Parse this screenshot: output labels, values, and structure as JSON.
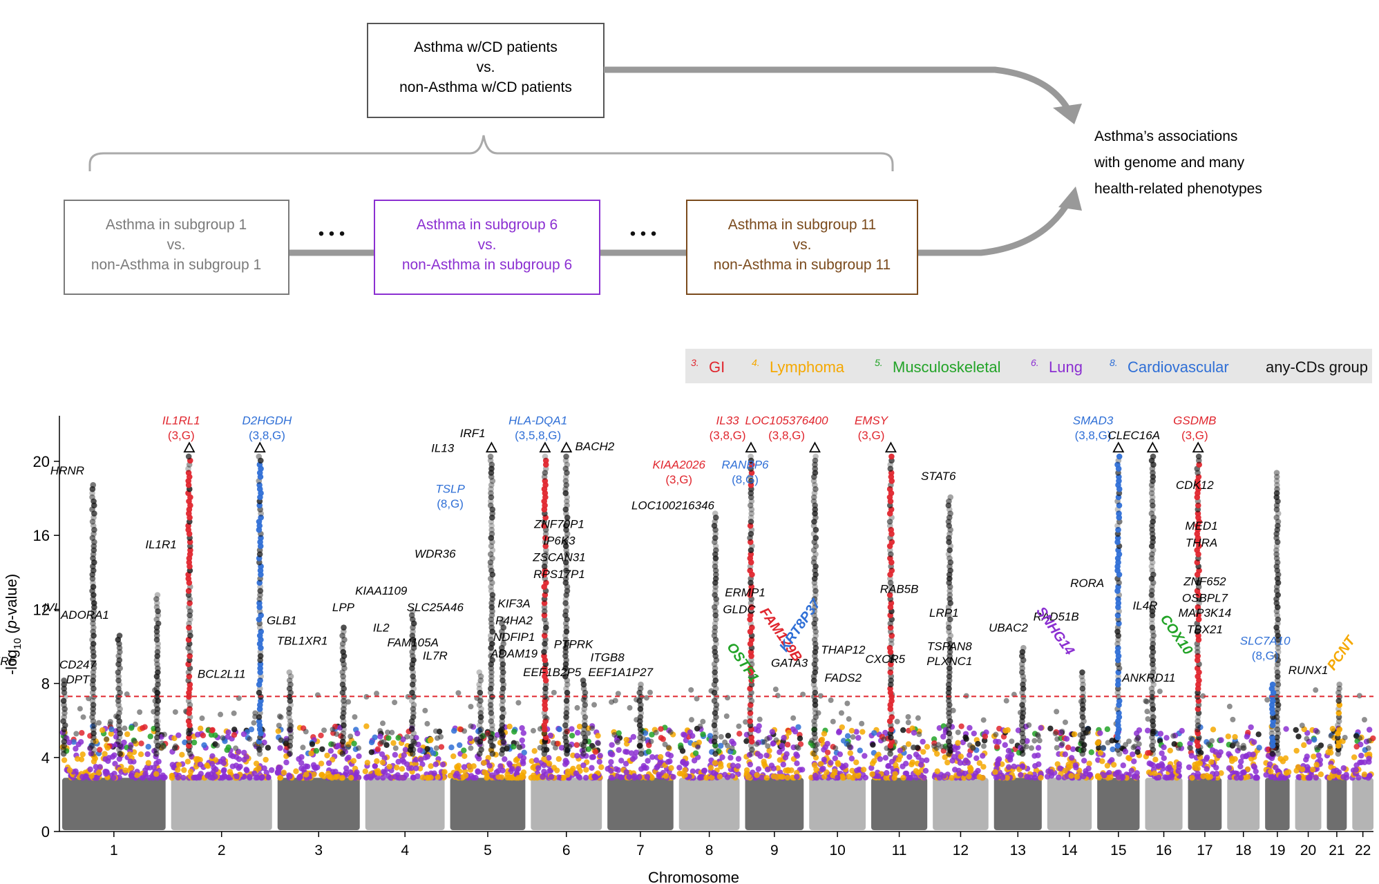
{
  "flow": {
    "top_box": [
      "Asthma w/CD patients",
      "vs.",
      "non-Asthma w/CD patients"
    ],
    "sub_boxes": [
      {
        "lines": [
          "Asthma in subgroup 1",
          "vs.",
          "non-Asthma in subgroup 1"
        ],
        "color": "#7a7a7a"
      },
      {
        "lines": [
          "Asthma in subgroup 6",
          "vs.",
          "non-Asthma in subgroup 6"
        ],
        "color": "#8b2fd1"
      },
      {
        "lines": [
          "Asthma in subgroup 11",
          "vs.",
          "non-Asthma in subgroup 11"
        ],
        "color": "#7a4a1c"
      }
    ],
    "ellipsis": "• • •",
    "result": [
      "Asthma’s associations",
      "with genome and many",
      "health-related phenotypes"
    ]
  },
  "legend": [
    {
      "num": "3.",
      "label": "GI",
      "color": "#e0262e"
    },
    {
      "num": "4.",
      "label": "Lymphoma",
      "color": "#f5a800"
    },
    {
      "num": "5.",
      "label": "Musculoskeletal",
      "color": "#22a327"
    },
    {
      "num": "6.",
      "label": "Lung",
      "color": "#8b2fd1"
    },
    {
      "num": "8.",
      "label": "Cardiovascular",
      "color": "#2f6fd6"
    },
    {
      "num": "",
      "label": "any-CDs group",
      "color": "#111111"
    }
  ],
  "colors": {
    "GI": "#e0262e",
    "Lymphoma": "#f5a800",
    "Musculoskeletal": "#22a327",
    "Lung": "#8b2fd1",
    "Cardiovascular": "#2f6fd6",
    "anyCD": "#111111",
    "chrDark": "#6e6e6e",
    "chrLight": "#b4b4b4",
    "threshold": "#e0262e",
    "legendBg": "#e6e6e6",
    "arrow": "#999999"
  },
  "chart_data": {
    "type": "scatter",
    "xlabel": "Chromosome",
    "ylabel": "-log10(p-value)",
    "ylim": [
      0,
      22
    ],
    "yticks": [
      0,
      4,
      8,
      12,
      16,
      20
    ],
    "threshold": 7.3,
    "chromosomes": [
      "1",
      "2",
      "3",
      "4",
      "5",
      "6",
      "7",
      "8",
      "9",
      "10",
      "11",
      "12",
      "13",
      "14",
      "15",
      "16",
      "17",
      "18",
      "19",
      "20",
      "21",
      "22"
    ],
    "chromosome_x_labels": [
      "1",
      "2",
      "3",
      "4",
      "5",
      "6",
      "7",
      "8",
      "9",
      "10",
      "11",
      "12",
      "13",
      "14",
      "15",
      "16",
      "17",
      "18",
      "19",
      "20",
      "21",
      "22"
    ],
    "peaks": [
      {
        "chr": 1,
        "pos": 0.02,
        "y": 8.2,
        "group": "anyCD"
      },
      {
        "chr": 1,
        "pos": 0.3,
        "y": 18.8,
        "group": "anyCD"
      },
      {
        "chr": 1,
        "pos": 0.55,
        "y": 10.8,
        "group": "anyCD"
      },
      {
        "chr": 1,
        "pos": 0.92,
        "y": 12.8,
        "group": "anyCD"
      },
      {
        "chr": 2,
        "pos": 0.18,
        "y": 20.7,
        "group": "GI",
        "capped": true
      },
      {
        "chr": 2,
        "pos": 0.88,
        "y": 20.7,
        "group": "Cardiovascular",
        "capped": true
      },
      {
        "chr": 3,
        "pos": 0.15,
        "y": 8.6,
        "group": "anyCD"
      },
      {
        "chr": 3,
        "pos": 0.8,
        "y": 11.2,
        "group": "anyCD"
      },
      {
        "chr": 4,
        "pos": 0.6,
        "y": 12.1,
        "group": "anyCD"
      },
      {
        "chr": 5,
        "pos": 0.4,
        "y": 8.8,
        "group": "anyCD"
      },
      {
        "chr": 5,
        "pos": 0.55,
        "y": 20.7,
        "group": "anyCD",
        "capped": true
      },
      {
        "chr": 5,
        "pos": 0.7,
        "y": 11.5,
        "group": "anyCD"
      },
      {
        "chr": 6,
        "pos": 0.2,
        "y": 20.7,
        "group": "GI",
        "capped": true
      },
      {
        "chr": 6,
        "pos": 0.5,
        "y": 20.7,
        "group": "anyCD",
        "capped": true
      },
      {
        "chr": 6,
        "pos": 0.75,
        "y": 8.2,
        "group": "anyCD"
      },
      {
        "chr": 7,
        "pos": 0.5,
        "y": 8.0,
        "group": "anyCD"
      },
      {
        "chr": 8,
        "pos": 0.6,
        "y": 17.3,
        "group": "anyCD"
      },
      {
        "chr": 9,
        "pos": 0.1,
        "y": 20.7,
        "group": "GI",
        "capped": true
      },
      {
        "chr": 10,
        "pos": 0.1,
        "y": 20.7,
        "group": "anyCD",
        "capped": true
      },
      {
        "chr": 11,
        "pos": 0.35,
        "y": 20.7,
        "group": "GI",
        "capped": true
      },
      {
        "chr": 12,
        "pos": 0.3,
        "y": 18.2,
        "group": "anyCD"
      },
      {
        "chr": 13,
        "pos": 0.6,
        "y": 10.1,
        "group": "anyCD"
      },
      {
        "chr": 14,
        "pos": 0.8,
        "y": 8.6,
        "group": "anyCD"
      },
      {
        "chr": 15,
        "pos": 0.5,
        "y": 20.7,
        "group": "Cardiovascular",
        "capped": true
      },
      {
        "chr": 16,
        "pos": 0.2,
        "y": 20.7,
        "group": "anyCD",
        "capped": true
      },
      {
        "chr": 17,
        "pos": 0.3,
        "y": 20.7,
        "group": "GI",
        "capped": true
      },
      {
        "chr": 19,
        "pos": 0.5,
        "y": 19.5,
        "group": "anyCD"
      },
      {
        "chr": 19,
        "pos": 0.3,
        "y": 8.0,
        "group": "Cardiovascular"
      },
      {
        "chr": 21,
        "pos": 0.6,
        "y": 8.1,
        "group": "Lymphoma"
      }
    ]
  },
  "labels": [
    {
      "text": "RERE",
      "chr": 1,
      "pos": -0.6,
      "y": 9.0
    },
    {
      "text": "HRNR",
      "chr": 1,
      "pos": 0.05,
      "y": 19.3
    },
    {
      "text": "IVL",
      "chr": 1,
      "pos": -0.1,
      "y": 11.9
    },
    {
      "text": "ADORA1",
      "chr": 1,
      "pos": 0.22,
      "y": 11.5
    },
    {
      "text": "CD247",
      "chr": 1,
      "pos": 0.15,
      "y": 8.8
    },
    {
      "text": "DPT",
      "chr": 1,
      "pos": 0.15,
      "y": 8.0
    },
    {
      "text": "IL1RL1",
      "chr": 2,
      "pos": 0.1,
      "y": 22.0,
      "color": "#e0262e"
    },
    {
      "text": "(3,G)",
      "chr": 2,
      "pos": 0.1,
      "y": 21.2,
      "color": "#e0262e",
      "plain": true
    },
    {
      "text": "D2HGDH",
      "chr": 2,
      "pos": 0.95,
      "y": 22.0,
      "color": "#2f6fd6"
    },
    {
      "text": "(3,8,G)",
      "chr": 2,
      "pos": 0.95,
      "y": 21.2,
      "color": "#2f6fd6",
      "plain": true
    },
    {
      "text": "IL1R1",
      "chr": 2,
      "pos": -0.1,
      "y": 15.3
    },
    {
      "text": "BCL2L11",
      "chr": 2,
      "pos": 0.5,
      "y": 8.3
    },
    {
      "text": "GLB1",
      "chr": 3,
      "pos": 0.05,
      "y": 11.2
    },
    {
      "text": "TBL1XR1",
      "chr": 3,
      "pos": 0.3,
      "y": 10.1
    },
    {
      "text": "LPP",
      "chr": 3,
      "pos": 0.8,
      "y": 11.9
    },
    {
      "text": "KIAA1109",
      "chr": 4,
      "pos": 0.2,
      "y": 12.8
    },
    {
      "text": "IL2",
      "chr": 4,
      "pos": 0.2,
      "y": 10.8
    },
    {
      "text": "FAM105A",
      "chr": 4,
      "pos": 0.6,
      "y": 10.0
    },
    {
      "text": "IL13",
      "chr": 5,
      "pos": -0.1,
      "y": 20.5
    },
    {
      "text": "IRF1",
      "chr": 5,
      "pos": 0.3,
      "y": 21.3
    },
    {
      "text": "TSLP",
      "chr": 5,
      "pos": 0.0,
      "y": 18.3,
      "color": "#2f6fd6"
    },
    {
      "text": "(8,G)",
      "chr": 5,
      "pos": 0.0,
      "y": 17.5,
      "color": "#2f6fd6",
      "plain": true
    },
    {
      "text": "WDR36",
      "chr": 5,
      "pos": -0.2,
      "y": 14.8
    },
    {
      "text": "SLC25A46",
      "chr": 5,
      "pos": -0.2,
      "y": 11.9
    },
    {
      "text": "IL7R",
      "chr": 5,
      "pos": -0.2,
      "y": 9.3
    },
    {
      "text": "KIF3A",
      "chr": 5,
      "pos": 0.85,
      "y": 12.1
    },
    {
      "text": "P4HA2",
      "chr": 5,
      "pos": 0.85,
      "y": 11.2
    },
    {
      "text": "NDFIP1",
      "chr": 5,
      "pos": 0.85,
      "y": 10.3
    },
    {
      "text": "ADAM19",
      "chr": 5,
      "pos": 0.85,
      "y": 9.4
    },
    {
      "text": "HLA-DQA1",
      "chr": 6,
      "pos": 0.1,
      "y": 22.0,
      "color": "#2f6fd6"
    },
    {
      "text": "(3,5,8,G)",
      "chr": 6,
      "pos": 0.1,
      "y": 21.2,
      "color": "#2f6fd6",
      "plain": true
    },
    {
      "text": "BACH2",
      "chr": 6,
      "pos": 0.9,
      "y": 20.6
    },
    {
      "text": "ZNF70P1",
      "chr": 6,
      "pos": 0.4,
      "y": 16.4
    },
    {
      "text": "IP6K3",
      "chr": 6,
      "pos": 0.4,
      "y": 15.5
    },
    {
      "text": "ZSCAN31",
      "chr": 6,
      "pos": 0.4,
      "y": 14.6
    },
    {
      "text": "RPS17P1",
      "chr": 6,
      "pos": 0.4,
      "y": 13.7
    },
    {
      "text": "PTPRK",
      "chr": 6,
      "pos": 0.6,
      "y": 9.9
    },
    {
      "text": "EEF1B2P5",
      "chr": 6,
      "pos": 0.3,
      "y": 8.4
    },
    {
      "text": "ITGB8",
      "chr": 7,
      "pos": 0.0,
      "y": 9.2
    },
    {
      "text": "EEF1A1P27",
      "chr": 7,
      "pos": 0.2,
      "y": 8.4
    },
    {
      "text": "LOC100216346",
      "chr": 8,
      "pos": -0.1,
      "y": 17.4
    },
    {
      "text": "KIAA2026",
      "chr": 8,
      "pos": 0.0,
      "y": 19.6,
      "color": "#e0262e"
    },
    {
      "text": "(3,G)",
      "chr": 8,
      "pos": 0.0,
      "y": 18.8,
      "color": "#e0262e",
      "plain": true
    },
    {
      "text": "IL33",
      "chr": 9,
      "pos": -0.3,
      "y": 22.0,
      "color": "#e0262e"
    },
    {
      "text": "(3,8,G)",
      "chr": 9,
      "pos": -0.3,
      "y": 21.2,
      "color": "#e0262e",
      "plain": true
    },
    {
      "text": "RANBP6",
      "chr": 9,
      "pos": 0.0,
      "y": 19.6,
      "color": "#2f6fd6"
    },
    {
      "text": "(8,G)",
      "chr": 9,
      "pos": 0.0,
      "y": 18.8,
      "color": "#2f6fd6",
      "plain": true
    },
    {
      "text": "ERMP1",
      "chr": 9,
      "pos": 0.0,
      "y": 12.7
    },
    {
      "text": "GLDC",
      "chr": 9,
      "pos": -0.1,
      "y": 11.8
    },
    {
      "text": "LOC105376400",
      "chr": 10,
      "pos": -0.4,
      "y": 22.0,
      "color": "#e0262e"
    },
    {
      "text": "(3,8,G)",
      "chr": 10,
      "pos": -0.4,
      "y": 21.2,
      "color": "#e0262e",
      "plain": true
    },
    {
      "text": "GATA3",
      "chr": 10,
      "pos": -0.35,
      "y": 8.9
    },
    {
      "text": "THAP12",
      "chr": 10,
      "pos": 0.6,
      "y": 9.6
    },
    {
      "text": "FADS2",
      "chr": 10,
      "pos": 0.6,
      "y": 8.1
    },
    {
      "text": "EMSY",
      "chr": 11,
      "pos": 0.0,
      "y": 22.0,
      "color": "#e0262e"
    },
    {
      "text": "(3,G)",
      "chr": 11,
      "pos": 0.0,
      "y": 21.2,
      "color": "#e0262e",
      "plain": true
    },
    {
      "text": "CXCR5",
      "chr": 11,
      "pos": 0.25,
      "y": 9.1
    },
    {
      "text": "RAB5B",
      "chr": 11,
      "pos": 0.5,
      "y": 12.9
    },
    {
      "text": "STAT6",
      "chr": 12,
      "pos": 0.1,
      "y": 19.0
    },
    {
      "text": "LRP1",
      "chr": 12,
      "pos": 0.2,
      "y": 11.6
    },
    {
      "text": "TSPAN8",
      "chr": 12,
      "pos": 0.3,
      "y": 9.8
    },
    {
      "text": "PLXNC1",
      "chr": 12,
      "pos": 0.3,
      "y": 9.0
    },
    {
      "text": "UBAC2",
      "chr": 13,
      "pos": 0.3,
      "y": 10.8
    },
    {
      "text": "RAD51B",
      "chr": 14,
      "pos": 0.2,
      "y": 11.4
    },
    {
      "text": "RORA",
      "chr": 14,
      "pos": 0.9,
      "y": 13.2
    },
    {
      "text": "SMAD3",
      "chr": 15,
      "pos": -0.1,
      "y": 22.0,
      "color": "#2f6fd6"
    },
    {
      "text": "(3,8,G)",
      "chr": 15,
      "pos": -0.1,
      "y": 21.2,
      "color": "#2f6fd6",
      "plain": true
    },
    {
      "text": "CLEC16A",
      "chr": 16,
      "pos": -0.3,
      "y": 21.2
    },
    {
      "text": "IL4R",
      "chr": 16,
      "pos": 0.0,
      "y": 12.0
    },
    {
      "text": "ANKRD11",
      "chr": 16,
      "pos": 0.1,
      "y": 8.1
    },
    {
      "text": "GSDMB",
      "chr": 17,
      "pos": 0.2,
      "y": 22.0,
      "color": "#e0262e"
    },
    {
      "text": "(3,G)",
      "chr": 17,
      "pos": 0.2,
      "y": 21.2,
      "color": "#e0262e",
      "plain": true
    },
    {
      "text": "CDK12",
      "chr": 17,
      "pos": 0.2,
      "y": 18.5
    },
    {
      "text": "MED1",
      "chr": 17,
      "pos": 0.4,
      "y": 16.3
    },
    {
      "text": "THRA",
      "chr": 17,
      "pos": 0.4,
      "y": 15.4
    },
    {
      "text": "ZNF652",
      "chr": 17,
      "pos": 0.5,
      "y": 13.3
    },
    {
      "text": "OSBPL7",
      "chr": 17,
      "pos": 0.5,
      "y": 12.4
    },
    {
      "text": "MAP3K14",
      "chr": 17,
      "pos": 0.5,
      "y": 11.6
    },
    {
      "text": "TBX21",
      "chr": 17,
      "pos": 0.5,
      "y": 10.7
    },
    {
      "text": "SLC7A10",
      "chr": 19,
      "pos": 0.0,
      "y": 10.1,
      "color": "#2f6fd6"
    },
    {
      "text": "(8,G)",
      "chr": 19,
      "pos": 0.0,
      "y": 9.3,
      "color": "#2f6fd6",
      "plain": true
    },
    {
      "text": "RUNX1",
      "chr": 20,
      "pos": 0.5,
      "y": 8.5
    }
  ],
  "rotated_labels": [
    {
      "text": "OSTF1",
      "chr": 9,
      "pos": -0.1,
      "y": 9.0,
      "color": "#22a327",
      "angle": 55
    },
    {
      "text": "FAM129B",
      "chr": 9,
      "pos": 0.55,
      "y": 10.5,
      "color": "#e0262e",
      "angle": 55
    },
    {
      "text": "KRT8P37",
      "chr": 10,
      "pos": -0.1,
      "y": 11.0,
      "color": "#2f6fd6",
      "angle": -55
    },
    {
      "text": "SNHG14",
      "chr": 14,
      "pos": 0.1,
      "y": 10.7,
      "color": "#8b2fd1",
      "angle": 55
    },
    {
      "text": "COX10",
      "chr": 17,
      "pos": -0.45,
      "y": 10.5,
      "color": "#22a327",
      "angle": 55
    },
    {
      "text": "PCNT",
      "chr": 21,
      "pos": 0.9,
      "y": 9.5,
      "color": "#f5a800",
      "angle": -55
    }
  ]
}
